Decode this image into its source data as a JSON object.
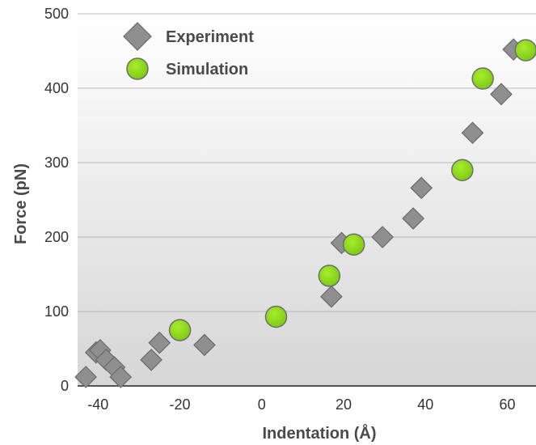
{
  "chart_data": {
    "type": "scatter",
    "xlabel": "Indentation (Å)",
    "ylabel": "Force (pN)",
    "xlim": [
      -45,
      67
    ],
    "ylim": [
      0,
      500
    ],
    "xticks": [
      -40,
      -20,
      0,
      20,
      40,
      60
    ],
    "yticks": [
      0,
      100,
      200,
      300,
      400,
      500
    ],
    "xtick_labels": [
      "-40",
      "-20",
      "0",
      "20",
      "40",
      "60"
    ],
    "ytick_labels": [
      "0",
      "100",
      "200",
      "300",
      "400",
      "500"
    ],
    "grid": "horizontal",
    "legend_position": "top-left",
    "series": [
      {
        "name": "Experiment",
        "marker": "diamond",
        "color": "#8f8f8f",
        "points": [
          {
            "x": -43,
            "y": 12
          },
          {
            "x": -40.5,
            "y": 45
          },
          {
            "x": -39.5,
            "y": 48
          },
          {
            "x": -38,
            "y": 35
          },
          {
            "x": -36,
            "y": 25
          },
          {
            "x": -34.5,
            "y": 12
          },
          {
            "x": -27,
            "y": 35
          },
          {
            "x": -25,
            "y": 58
          },
          {
            "x": -14,
            "y": 55
          },
          {
            "x": 17,
            "y": 120
          },
          {
            "x": 19.5,
            "y": 192
          },
          {
            "x": 29.5,
            "y": 200
          },
          {
            "x": 37,
            "y": 225
          },
          {
            "x": 39,
            "y": 266
          },
          {
            "x": 51.5,
            "y": 340
          },
          {
            "x": 58.5,
            "y": 392
          },
          {
            "x": 61.5,
            "y": 452
          }
        ]
      },
      {
        "name": "Simulation",
        "marker": "circle",
        "color": "#8fd61e",
        "points": [
          {
            "x": -20,
            "y": 75
          },
          {
            "x": 3.5,
            "y": 93
          },
          {
            "x": 16.5,
            "y": 148
          },
          {
            "x": 22.5,
            "y": 190
          },
          {
            "x": 49,
            "y": 290
          },
          {
            "x": 54,
            "y": 413
          },
          {
            "x": 64.5,
            "y": 451
          }
        ]
      }
    ]
  }
}
